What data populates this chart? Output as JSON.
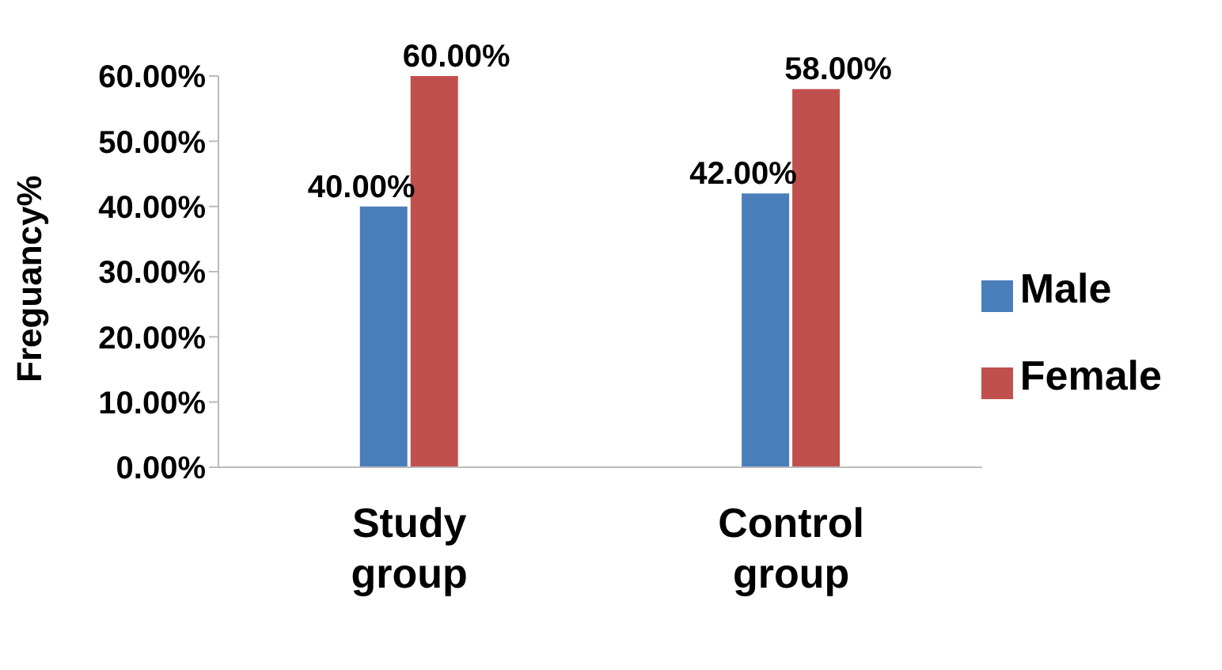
{
  "chart_data": {
    "type": "bar",
    "ylabel": "Freguancy%",
    "categories": [
      "Study group",
      "Control group"
    ],
    "series": [
      {
        "name": "Male",
        "color": "#4a7ebb",
        "values": [
          40,
          42
        ],
        "value_labels": [
          "40.00%",
          "42.00%"
        ]
      },
      {
        "name": "Female",
        "color": "#c0504d",
        "values": [
          60,
          58
        ],
        "value_labels": [
          "60.00%",
          "58.00%"
        ]
      }
    ],
    "ylim": [
      0,
      60
    ],
    "yticks": [
      {
        "value": 0,
        "label": "0.00%"
      },
      {
        "value": 10,
        "label": "10.00%"
      },
      {
        "value": 20,
        "label": "20.00%"
      },
      {
        "value": 30,
        "label": "30.00%"
      },
      {
        "value": 40,
        "label": "40.00%"
      },
      {
        "value": 50,
        "label": "50.00%"
      },
      {
        "value": 60,
        "label": "60.00%"
      }
    ],
    "grid": false,
    "legend": "right"
  }
}
